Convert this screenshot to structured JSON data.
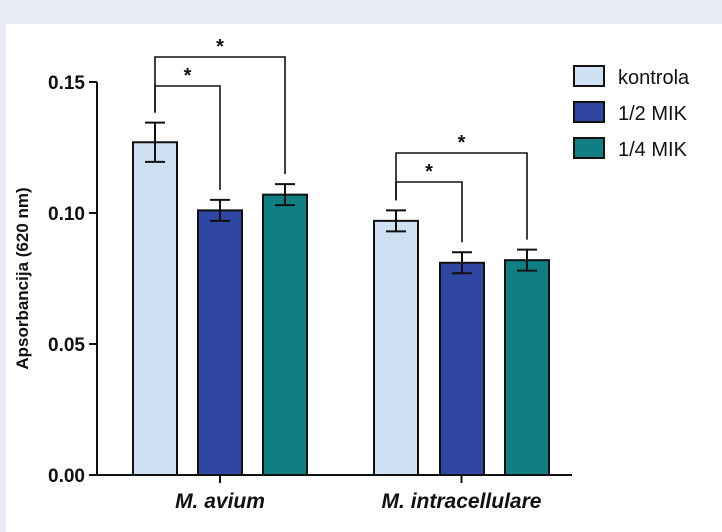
{
  "chart_data": {
    "type": "bar",
    "categories": [
      "M. avium",
      "M. intracellulare"
    ],
    "category_labels": [
      {
        "italic": "M.",
        "rest": " avium"
      },
      {
        "italic": "M.",
        "rest": " intracellulare"
      }
    ],
    "series": [
      {
        "name": "kontrola",
        "color": "#cfe0f2",
        "values": [
          0.127,
          0.097
        ],
        "errors": [
          0.0075,
          0.004
        ]
      },
      {
        "name": "1/2 MIK",
        "color": "#2f46a3",
        "values": [
          0.101,
          0.081
        ],
        "errors": [
          0.004,
          0.004
        ]
      },
      {
        "name": "1/4 MIK",
        "color": "#0f7f84",
        "values": [
          0.107,
          0.082
        ],
        "errors": [
          0.004,
          0.004
        ]
      }
    ],
    "ylabel": "Apsorbancija (620 nm)",
    "xlabel": "",
    "ylim": [
      0.0,
      0.15
    ],
    "yticks": [
      0.0,
      0.05,
      0.1,
      0.15
    ],
    "ytick_labels": [
      "0.00",
      "0.05",
      "0.10",
      "0.15"
    ],
    "grid": false,
    "legend_position": "top-right",
    "significance": [
      {
        "category": 0,
        "from": 0,
        "to": 1,
        "label": "*"
      },
      {
        "category": 0,
        "from": 0,
        "to": 2,
        "label": "*"
      },
      {
        "category": 1,
        "from": 0,
        "to": 1,
        "label": "*"
      },
      {
        "category": 1,
        "from": 0,
        "to": 2,
        "label": "*"
      }
    ]
  }
}
